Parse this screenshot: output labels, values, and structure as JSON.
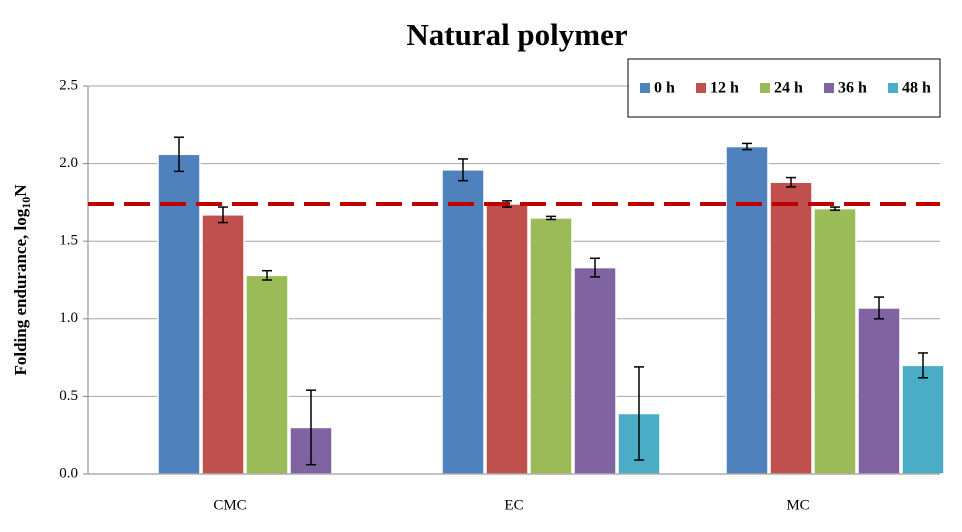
{
  "chart_data": {
    "type": "bar",
    "title": "Natural polymer",
    "y_label": {
      "text": "Folding endurance, log",
      "subscript": "10",
      "suffix": "N"
    },
    "categories": [
      "CMC",
      "EC",
      "MC"
    ],
    "series": [
      {
        "name": "0 h",
        "color": "#4f81bd",
        "values": [
          2.06,
          1.96,
          2.11
        ],
        "errors": [
          0.11,
          0.07,
          0.02
        ]
      },
      {
        "name": "12 h",
        "color": "#c0504d",
        "values": [
          1.67,
          1.74,
          1.88
        ],
        "errors": [
          0.05,
          0.02,
          0.03
        ]
      },
      {
        "name": "24 h",
        "color": "#9bbb59",
        "values": [
          1.28,
          1.65,
          1.71
        ],
        "errors": [
          0.03,
          0.01,
          0.01
        ]
      },
      {
        "name": "36 h",
        "color": "#8064a2",
        "values": [
          0.3,
          1.33,
          1.07
        ],
        "errors": [
          0.24,
          0.06,
          0.07
        ]
      },
      {
        "name": "48 h",
        "color": "#4bacc6",
        "values": [
          null,
          0.39,
          0.7
        ],
        "errors": [
          null,
          0.3,
          0.08
        ]
      }
    ],
    "reference_line": {
      "value": 1.74,
      "color": "#c00000"
    },
    "ylim": [
      0,
      2.5
    ],
    "yticks": [
      {
        "value": 0,
        "label": "0.0"
      },
      0.5,
      {
        "value": 1,
        "label": "1.0"
      },
      1.5,
      {
        "value": 2,
        "label": "2.0"
      },
      2.5
    ],
    "grid": true,
    "legend": "top-right"
  }
}
